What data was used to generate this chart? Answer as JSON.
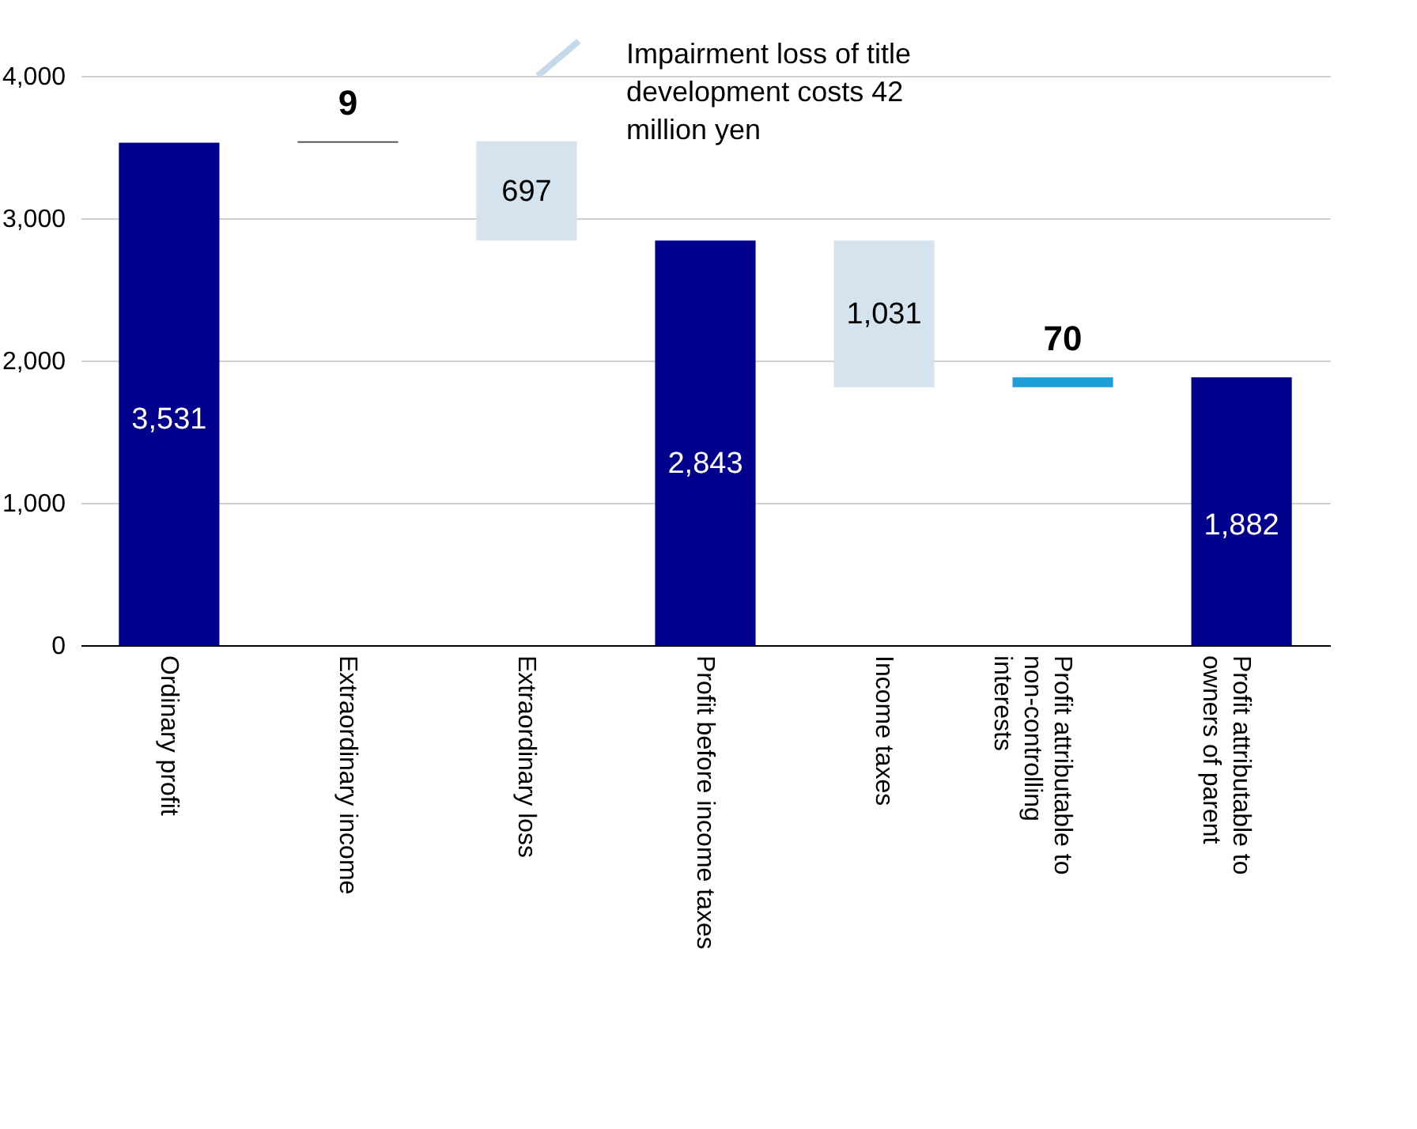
{
  "chart_data": {
    "type": "bar",
    "categories": [
      "Ordinary profit",
      "Extraordinary income",
      "Extraordinary loss",
      "Profit before income taxes",
      "Income taxes",
      "Profit attributable to non-controlling interests",
      "Profit attributable to owners of parent"
    ],
    "values": [
      3531,
      9,
      697,
      2843,
      1031,
      70,
      1882
    ],
    "base": [
      0,
      3531,
      2843,
      0,
      1812,
      1812,
      0
    ],
    "colors": [
      "#00008c",
      "#404040",
      "#d5e3ee",
      "#00008c",
      "#d5e3ee",
      "#1b9fd6",
      "#00008c"
    ],
    "ylim": [
      0,
      4000
    ],
    "yticks": [
      {
        "value": 0,
        "label": "0"
      },
      {
        "value": 1000,
        "label": "1,000"
      },
      {
        "value": 2000,
        "label": "2,000"
      },
      {
        "value": 3000,
        "label": "3,000"
      },
      {
        "value": 4000,
        "label": "4,000"
      }
    ],
    "grid": "y",
    "value_labels": [
      "3,531",
      "9",
      "697",
      "2,843",
      "1,031",
      "70",
      "1,882"
    ],
    "annotations": [
      "Impairment loss of title development costs 42 million yen"
    ]
  }
}
